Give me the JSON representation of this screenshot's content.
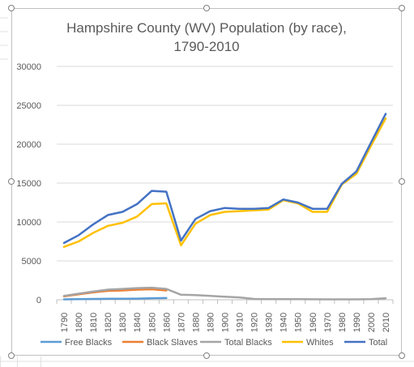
{
  "chart_data": {
    "type": "line",
    "title_lines": [
      "Hampshire County (WV) Population (by race),",
      "1790-2010"
    ],
    "xlabel": "",
    "ylabel": "",
    "ylim": [
      0,
      30000
    ],
    "yticks": [
      0,
      5000,
      10000,
      15000,
      20000,
      25000,
      30000
    ],
    "grid": true,
    "legend": "bottom",
    "x": [
      "1790",
      "1800",
      "1810",
      "1820",
      "1830",
      "1840",
      "1850",
      "1860",
      "1870",
      "1880",
      "1890",
      "1900",
      "1910",
      "1920",
      "1930",
      "1940",
      "1950",
      "1960",
      "1970",
      "1980",
      "1990",
      "2000",
      "2010"
    ],
    "series": [
      {
        "name": "Free Blacks",
        "color": "#5b9bd5",
        "values": [
          50,
          80,
          100,
          120,
          130,
          150,
          200,
          220,
          null,
          null,
          null,
          null,
          null,
          null,
          null,
          null,
          null,
          null,
          null,
          null,
          null,
          null,
          null
        ]
      },
      {
        "name": "Black Slaves",
        "color": "#ed7d31",
        "values": [
          450,
          700,
          950,
          1150,
          1200,
          1300,
          1350,
          1200,
          null,
          null,
          null,
          null,
          null,
          null,
          null,
          null,
          null,
          null,
          null,
          null,
          null,
          null,
          null
        ]
      },
      {
        "name": "Total Blacks",
        "color": "#a5a5a5",
        "values": [
          500,
          780,
          1050,
          1300,
          1400,
          1500,
          1550,
          1400,
          650,
          600,
          500,
          400,
          300,
          100,
          80,
          80,
          70,
          60,
          50,
          50,
          50,
          70,
          200
        ]
      },
      {
        "name": "Whites",
        "color": "#ffc000",
        "values": [
          6800,
          7500,
          8600,
          9500,
          9900,
          10700,
          12300,
          12400,
          7000,
          9800,
          10900,
          11300,
          11400,
          11500,
          11600,
          12800,
          12400,
          11300,
          11300,
          14800,
          16200,
          19800,
          23300
        ]
      },
      {
        "name": "Total",
        "color": "#4472c4",
        "values": [
          7300,
          8300,
          9700,
          10900,
          11300,
          12300,
          14000,
          13900,
          7600,
          10400,
          11400,
          11800,
          11700,
          11700,
          11800,
          12900,
          12500,
          11700,
          11700,
          14900,
          16500,
          20200,
          23900
        ]
      }
    ]
  }
}
